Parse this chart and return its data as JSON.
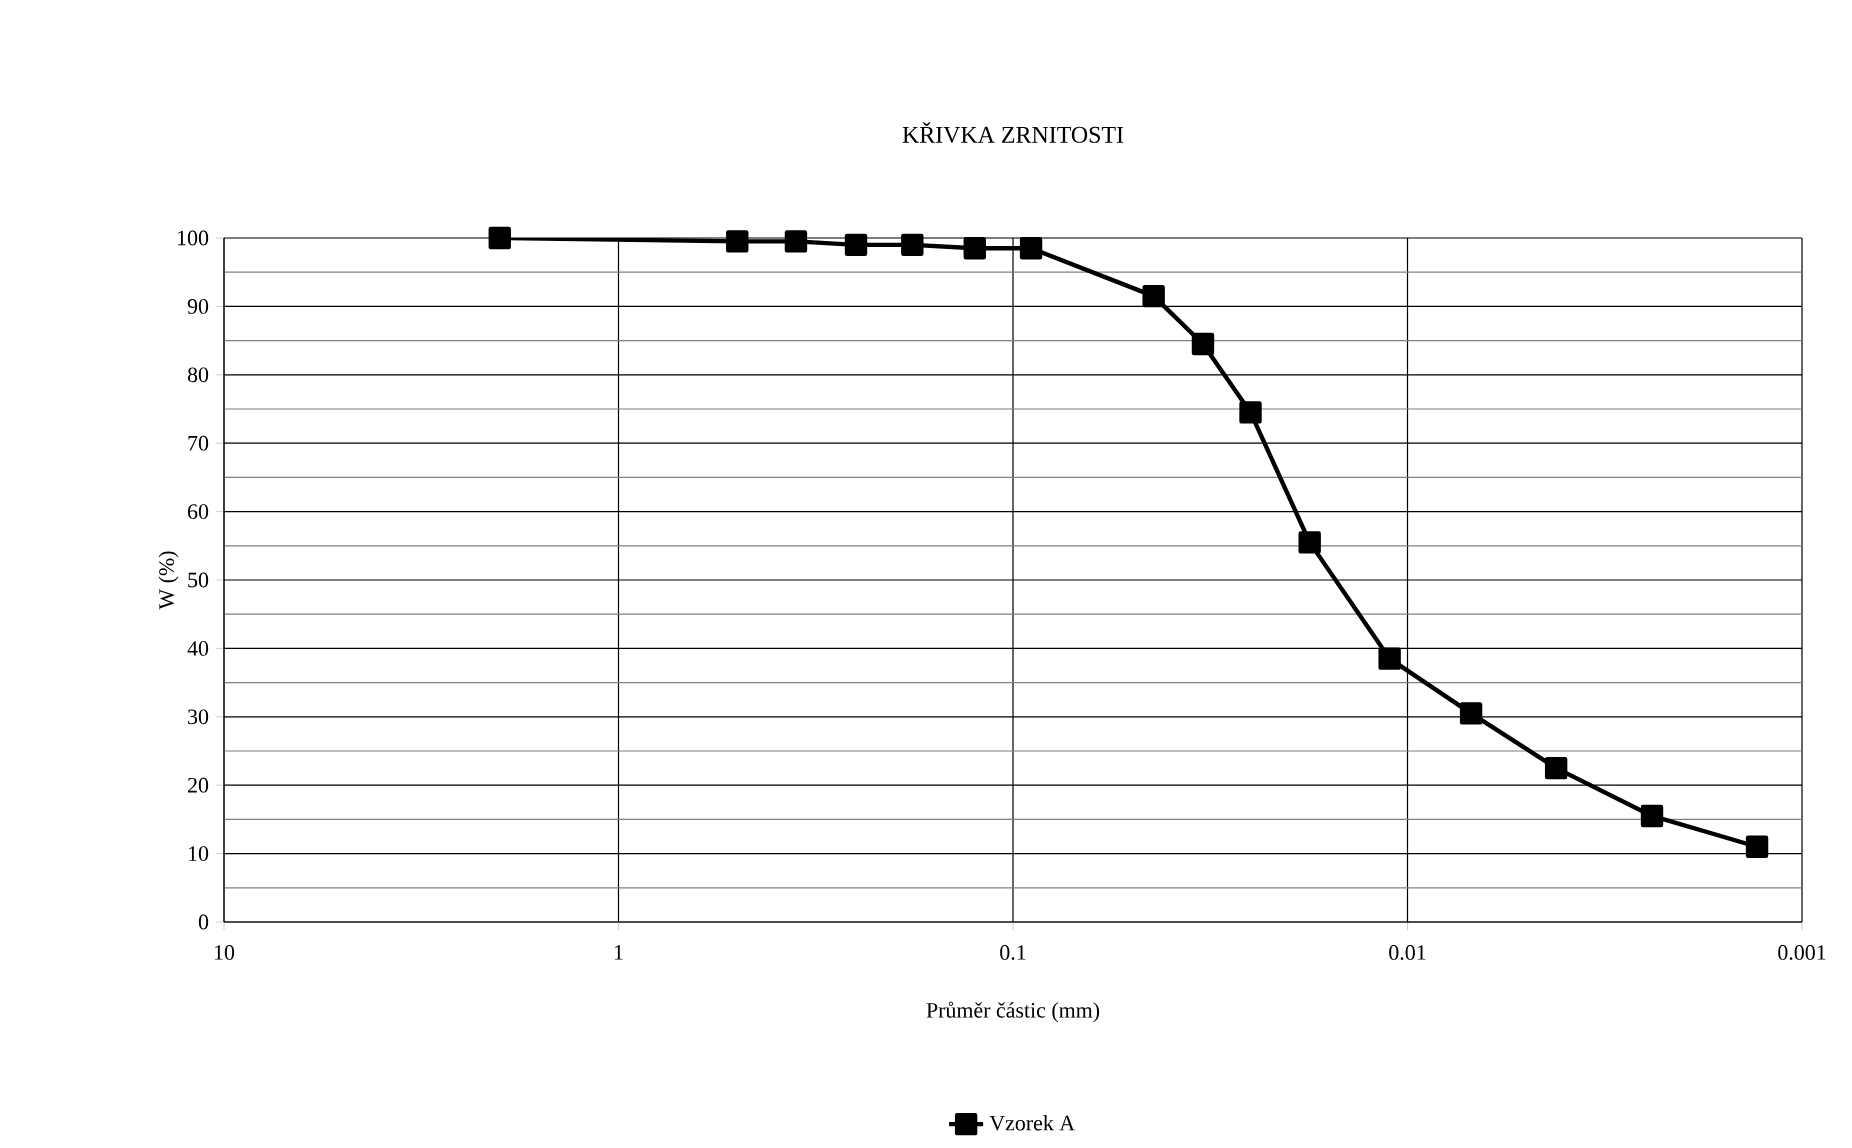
{
  "chart_data": {
    "type": "line",
    "title": "KŘIVKA  ZRNITOSTI",
    "xlabel": "Průměr částic (mm)",
    "ylabel": "W (%)",
    "x": [
      2,
      0.5,
      0.355,
      0.25,
      0.18,
      0.125,
      0.09,
      0.044,
      0.033,
      0.025,
      0.0177,
      0.0111,
      0.0069,
      0.0042,
      0.0024,
      0.0013
    ],
    "series": [
      {
        "name": "Vzorek A",
        "color": "#000000",
        "values": [
          100,
          99.5,
          99.5,
          99,
          99,
          98.5,
          98.5,
          91.5,
          84.5,
          74.5,
          55.5,
          38.5,
          30.5,
          22.5,
          15.5,
          11
        ]
      }
    ],
    "log": "x",
    "xlim": [
      10,
      0.001
    ],
    "xticks": [
      10,
      1,
      0.1,
      0.01,
      0.001
    ],
    "ylim": [
      0,
      100
    ],
    "yticks": [
      0,
      10,
      20,
      30,
      40,
      50,
      60,
      70,
      80,
      90,
      100
    ],
    "grid": true,
    "legend": "bottom",
    "marker": "square",
    "line_style": "solid"
  }
}
